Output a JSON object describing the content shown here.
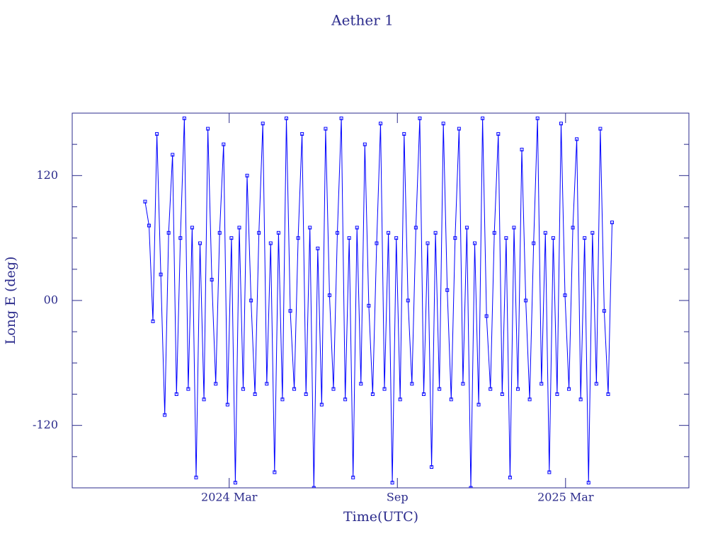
{
  "chart_data": {
    "type": "line",
    "title": "Aether 1",
    "x_label": "Time(UTC)",
    "y_label": "Long E (deg)",
    "color": "#0000ff",
    "marker": "square",
    "xlim": [
      -5.6,
      16.4
    ],
    "xticks": [
      {
        "value": 0,
        "label": "2024 Mar"
      },
      {
        "value": 6,
        "label": "Sep"
      },
      {
        "value": 12,
        "label": "2025 Mar"
      }
    ],
    "ylim": [
      -180,
      180
    ],
    "yticks": [
      {
        "value": -120,
        "label": "-120"
      },
      {
        "value": 0,
        "label": "00"
      },
      120
    ],
    "yminorticks": [
      -150,
      -90,
      -60,
      -30,
      30,
      60,
      90,
      150
    ],
    "x": [
      -3.0,
      -2.86,
      -2.72,
      -2.58,
      -2.44,
      -2.3,
      -2.16,
      -2.02,
      -1.88,
      -1.74,
      -1.6,
      -1.46,
      -1.32,
      -1.18,
      -1.04,
      -0.9,
      -0.76,
      -0.62,
      -0.48,
      -0.34,
      -0.2,
      -0.06,
      0.08,
      0.22,
      0.36,
      0.5,
      0.64,
      0.78,
      0.92,
      1.06,
      1.2,
      1.34,
      1.48,
      1.62,
      1.76,
      1.9,
      2.04,
      2.18,
      2.32,
      2.46,
      2.6,
      2.74,
      2.88,
      3.02,
      3.16,
      3.3,
      3.44,
      3.58,
      3.72,
      3.86,
      4.0,
      4.14,
      4.28,
      4.42,
      4.56,
      4.7,
      4.84,
      4.98,
      5.12,
      5.26,
      5.4,
      5.54,
      5.68,
      5.82,
      5.96,
      6.1,
      6.24,
      6.38,
      6.52,
      6.66,
      6.8,
      6.94,
      7.08,
      7.22,
      7.36,
      7.5,
      7.64,
      7.78,
      7.92,
      8.06,
      8.2,
      8.34,
      8.48,
      8.62,
      8.76,
      8.9,
      9.04,
      9.18,
      9.32,
      9.46,
      9.6,
      9.74,
      9.88,
      10.02,
      10.16,
      10.3,
      10.44,
      10.58,
      10.72,
      10.86,
      11.0,
      11.14,
      11.28,
      11.42,
      11.56,
      11.7,
      11.84,
      11.98,
      12.12,
      12.26,
      12.4,
      12.54,
      12.68,
      12.82,
      12.96,
      13.1,
      13.24,
      13.38,
      13.52,
      13.66
    ],
    "values": [
      95,
      72,
      -20,
      160,
      25,
      -110,
      65,
      140,
      -90,
      60,
      175,
      -85,
      70,
      -170,
      55,
      -95,
      165,
      20,
      -80,
      65,
      150,
      -100,
      60,
      -175,
      70,
      -85,
      120,
      0,
      -90,
      65,
      170,
      -80,
      55,
      -165,
      65,
      -95,
      175,
      -10,
      -85,
      60,
      160,
      -90,
      70,
      -180,
      50,
      -100,
      165,
      5,
      -85,
      65,
      175,
      -95,
      60,
      -170,
      70,
      -80,
      150,
      -5,
      -90,
      55,
      170,
      -85,
      65,
      -175,
      60,
      -95,
      160,
      0,
      -80,
      70,
      175,
      -90,
      55,
      -160,
      65,
      -85,
      170,
      10,
      -95,
      60,
      165,
      -80,
      70,
      -180,
      55,
      -100,
      175,
      -15,
      -85,
      65,
      160,
      -90,
      60,
      -170,
      70,
      -85,
      145,
      0,
      -95,
      55,
      175,
      -80,
      65,
      -165,
      60,
      -90,
      170,
      5,
      -85,
      70,
      155,
      -95,
      60,
      -175,
      65,
      -80,
      165,
      -10,
      -90,
      75
    ]
  }
}
